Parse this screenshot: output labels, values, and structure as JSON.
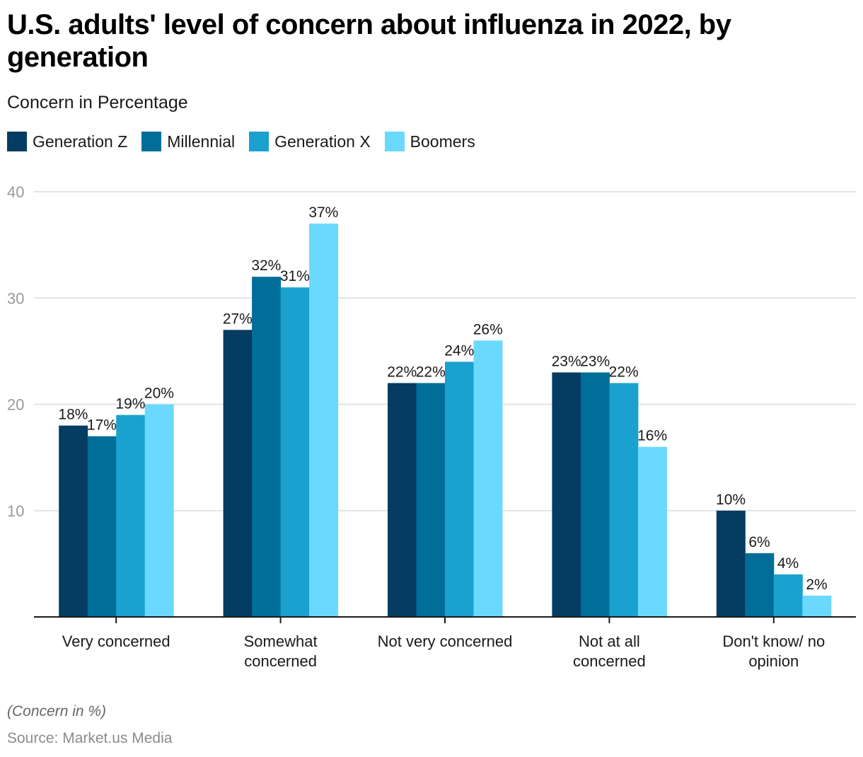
{
  "header": {
    "title": "U.S. adults' level of concern about influenza in 2022, by generation",
    "subtitle": "Concern in Percentage"
  },
  "footer": {
    "note": "(Concern in %)",
    "source": "Source: Market.us Media"
  },
  "chart_data": {
    "type": "bar",
    "title": "U.S. adults' level of concern about influenza in 2022, by generation",
    "subtitle": "Concern in Percentage",
    "xlabel": "",
    "ylabel": "",
    "ylim": [
      0,
      40
    ],
    "yticks": [
      10,
      20,
      30,
      40
    ],
    "grid": true,
    "legend_position": "top-left",
    "categories": [
      [
        "Very concerned"
      ],
      [
        "Somewhat",
        "concerned"
      ],
      [
        "Not very concerned"
      ],
      [
        "Not at all",
        "concerned"
      ],
      [
        "Don't know/ no",
        "opinion"
      ]
    ],
    "series": [
      {
        "name": "Generation Z",
        "color": "#053c61",
        "values": [
          18,
          27,
          22,
          23,
          10
        ]
      },
      {
        "name": "Millennial",
        "color": "#006e99",
        "values": [
          17,
          32,
          22,
          23,
          6
        ]
      },
      {
        "name": "Generation X",
        "color": "#1aa1cf",
        "values": [
          19,
          31,
          24,
          22,
          4
        ]
      },
      {
        "name": "Boomers",
        "color": "#6bd8fe",
        "values": [
          20,
          37,
          26,
          16,
          2
        ]
      }
    ],
    "value_suffix": "%"
  }
}
